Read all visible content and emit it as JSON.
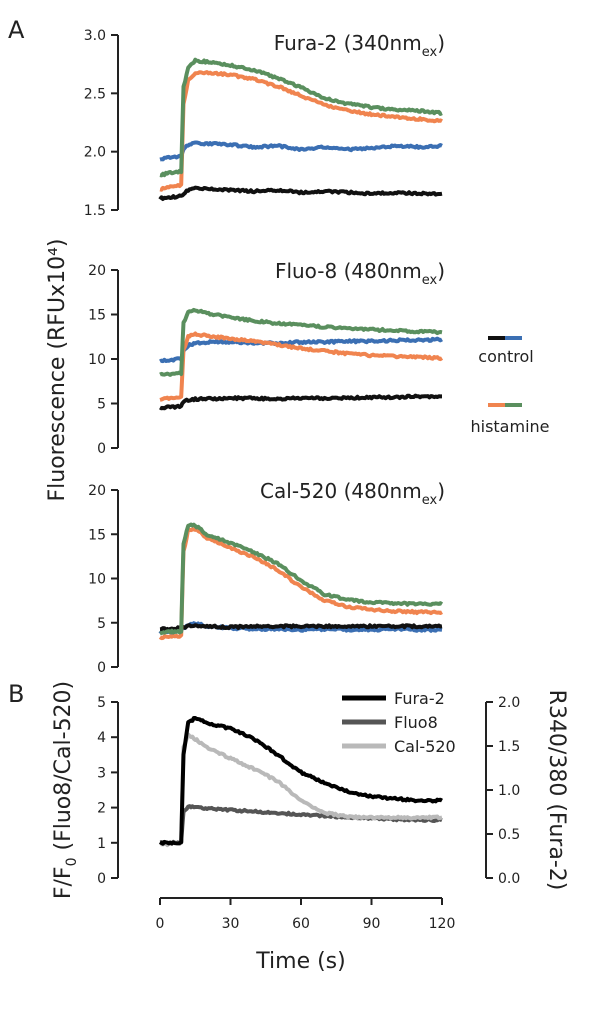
{
  "labels": {
    "panel_a": "A",
    "panel_b": "B",
    "shared_ylabel": "Fluorescence (RFUx10⁴)",
    "xlabel": "Time (s)",
    "legend_control": "control",
    "legend_histamine": "histamine"
  },
  "colors": {
    "control_black": "#111111",
    "control_blue": "#3b6fb3",
    "histamine_orange": "#f0844f",
    "histamine_green": "#5a8f5e",
    "fura2_b": "#000000",
    "fluo8_b": "#555555",
    "cal520_b": "#b9b9b9"
  },
  "chart_data": [
    {
      "type": "line",
      "title_main": "Fura-2 (340nm",
      "title_sub": "ex",
      "title_end": ")",
      "xlim": [
        0,
        120
      ],
      "ylim": [
        1.5,
        3.0
      ],
      "yticks": [
        "1.5",
        "2.0",
        "2.5",
        "3.0"
      ],
      "ytick_values": [
        1.5,
        2.0,
        2.5,
        3.0
      ],
      "x": [
        0,
        5,
        9,
        10,
        12,
        15,
        20,
        30,
        40,
        50,
        60,
        70,
        80,
        90,
        100,
        110,
        120
      ],
      "series": [
        {
          "color_key": "control_black",
          "values": [
            1.6,
            1.61,
            1.62,
            1.64,
            1.67,
            1.69,
            1.68,
            1.67,
            1.66,
            1.67,
            1.65,
            1.66,
            1.65,
            1.64,
            1.65,
            1.64,
            1.64
          ]
        },
        {
          "color_key": "control_blue",
          "values": [
            1.94,
            1.95,
            1.96,
            2.02,
            2.06,
            2.07,
            2.07,
            2.06,
            2.04,
            2.05,
            2.02,
            2.04,
            2.02,
            2.03,
            2.05,
            2.04,
            2.05
          ]
        },
        {
          "color_key": "histamine_orange",
          "values": [
            1.68,
            1.7,
            1.71,
            2.4,
            2.62,
            2.67,
            2.68,
            2.66,
            2.62,
            2.56,
            2.48,
            2.4,
            2.35,
            2.32,
            2.3,
            2.28,
            2.26
          ]
        },
        {
          "color_key": "histamine_green",
          "values": [
            1.8,
            1.82,
            1.83,
            2.55,
            2.72,
            2.78,
            2.77,
            2.74,
            2.7,
            2.63,
            2.55,
            2.46,
            2.41,
            2.38,
            2.36,
            2.35,
            2.33
          ]
        }
      ]
    },
    {
      "type": "line",
      "title_main": "Fluo-8 (480nm",
      "title_sub": "ex",
      "title_end": ")",
      "xlim": [
        0,
        120
      ],
      "ylim": [
        0,
        20
      ],
      "yticks": [
        "0",
        "5",
        "10",
        "15",
        "20"
      ],
      "ytick_values": [
        0,
        5,
        10,
        15,
        20
      ],
      "x": [
        0,
        5,
        9,
        10,
        12,
        15,
        20,
        30,
        40,
        50,
        60,
        70,
        80,
        90,
        100,
        110,
        120
      ],
      "series": [
        {
          "color_key": "control_black",
          "values": [
            4.5,
            4.6,
            4.7,
            5.2,
            5.4,
            5.5,
            5.5,
            5.6,
            5.6,
            5.5,
            5.6,
            5.6,
            5.6,
            5.7,
            5.7,
            5.8,
            5.8
          ]
        },
        {
          "color_key": "control_blue",
          "values": [
            9.8,
            9.9,
            10.0,
            11.0,
            11.5,
            11.8,
            11.9,
            11.9,
            11.8,
            11.8,
            11.9,
            11.9,
            12.0,
            12.0,
            12.1,
            12.1,
            12.2
          ]
        },
        {
          "color_key": "histamine_orange",
          "values": [
            5.5,
            5.6,
            5.7,
            11.0,
            12.5,
            12.8,
            12.6,
            12.3,
            12.0,
            11.6,
            11.2,
            10.9,
            10.6,
            10.4,
            10.3,
            10.2,
            10.1
          ]
        },
        {
          "color_key": "histamine_green",
          "values": [
            8.2,
            8.3,
            8.4,
            14.0,
            15.4,
            15.5,
            15.1,
            14.7,
            14.3,
            14.0,
            13.8,
            13.6,
            13.4,
            13.3,
            13.2,
            13.1,
            13.0
          ]
        }
      ]
    },
    {
      "type": "line",
      "title_main": "Cal-520 (480nm",
      "title_sub": "ex",
      "title_end": ")",
      "xlim": [
        0,
        120
      ],
      "ylim": [
        0,
        20
      ],
      "yticks": [
        "0",
        "5",
        "10",
        "15",
        "20"
      ],
      "ytick_values": [
        0,
        5,
        10,
        15,
        20
      ],
      "x": [
        0,
        5,
        9,
        10,
        12,
        15,
        20,
        30,
        40,
        50,
        60,
        70,
        80,
        90,
        100,
        110,
        120
      ],
      "series": [
        {
          "color_key": "control_blue",
          "values": [
            4.0,
            4.0,
            4.1,
            4.4,
            4.7,
            4.9,
            4.6,
            4.4,
            4.3,
            4.3,
            4.2,
            4.3,
            4.2,
            4.2,
            4.3,
            4.2,
            4.2
          ]
        },
        {
          "color_key": "control_black",
          "values": [
            4.3,
            4.3,
            4.4,
            4.5,
            4.6,
            4.7,
            4.6,
            4.5,
            4.6,
            4.6,
            4.6,
            4.6,
            4.6,
            4.6,
            4.6,
            4.6,
            4.6
          ]
        },
        {
          "color_key": "histamine_orange",
          "values": [
            3.3,
            3.4,
            3.5,
            13.0,
            15.5,
            15.6,
            14.6,
            13.5,
            12.4,
            11.0,
            9.0,
            7.5,
            6.8,
            6.5,
            6.3,
            6.2,
            6.2
          ]
        },
        {
          "color_key": "histamine_green",
          "values": [
            3.9,
            4.0,
            4.0,
            13.8,
            16.0,
            16.0,
            15.0,
            14.0,
            13.0,
            11.7,
            9.8,
            8.2,
            7.6,
            7.3,
            7.2,
            7.1,
            7.1
          ]
        }
      ]
    },
    {
      "type": "line",
      "ylabel_left_main": "F/F",
      "ylabel_left_sub": "0",
      "ylabel_left_end": " (Fluo8/Cal-520)",
      "ylabel_right": "R340/380 (Fura-2)",
      "xlim": [
        0,
        120
      ],
      "ylim": [
        0,
        5
      ],
      "yticks": [
        "0",
        "1",
        "2",
        "3",
        "4",
        "5"
      ],
      "ytick_values": [
        0,
        1,
        2,
        3,
        4,
        5
      ],
      "ylim_right": [
        0,
        2
      ],
      "yticks_right": [
        "0.0",
        "0.5",
        "1.0",
        "1.5",
        "2.0"
      ],
      "ytick_values_right": [
        0,
        0.5,
        1.0,
        1.5,
        2.0
      ],
      "xticks": [
        "0",
        "30",
        "60",
        "90",
        "120"
      ],
      "xtick_values": [
        0,
        30,
        60,
        90,
        120
      ],
      "x": [
        0,
        5,
        9,
        10,
        12,
        15,
        20,
        30,
        40,
        50,
        60,
        70,
        80,
        90,
        100,
        110,
        120
      ],
      "series": [
        {
          "name": "Fluo8",
          "color_key": "fluo8_b",
          "values": [
            1.0,
            1.0,
            1.0,
            1.9,
            2.02,
            2.0,
            1.97,
            1.93,
            1.89,
            1.85,
            1.8,
            1.76,
            1.72,
            1.69,
            1.67,
            1.65,
            1.64
          ]
        },
        {
          "name": "Cal-520",
          "color_key": "cal520_b",
          "values": [
            0.95,
            0.97,
            1.0,
            3.7,
            4.05,
            3.95,
            3.7,
            3.4,
            3.1,
            2.75,
            2.2,
            1.85,
            1.74,
            1.72,
            1.72,
            1.72,
            1.72
          ]
        },
        {
          "name": "Fura-2",
          "color_key": "fura2_b",
          "values": [
            1.0,
            1.0,
            1.0,
            3.5,
            4.4,
            4.55,
            4.4,
            4.25,
            3.95,
            3.5,
            3.0,
            2.7,
            2.45,
            2.32,
            2.25,
            2.2,
            2.2
          ]
        }
      ]
    }
  ]
}
